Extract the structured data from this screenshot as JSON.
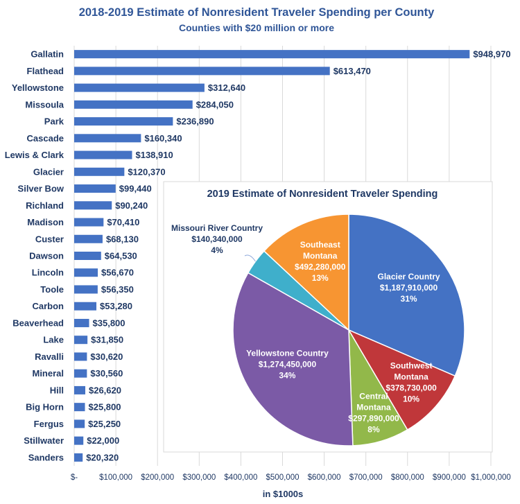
{
  "chart_data": [
    {
      "type": "bar",
      "orientation": "horizontal",
      "title": "2018-2019 Estimate of Nonresident Traveler Spending per County",
      "subtitle": "Counties with $20 million or more",
      "xlabel": "in $1000s",
      "xlim": [
        0,
        1000000
      ],
      "grid": true,
      "bar_color": "#4472C4",
      "x_tick_labels": [
        "$-",
        "$100,000",
        "$200,000",
        "$300,000",
        "$400,000",
        "$500,000",
        "$600,000",
        "$700,000",
        "$800,000",
        "$900,000",
        "$1,000,000"
      ],
      "categories": [
        "Gallatin",
        "Flathead",
        "Yellowstone",
        "Missoula",
        "Park",
        "Cascade",
        "Lewis & Clark",
        "Glacier",
        "Silver Bow",
        "Richland",
        "Madison",
        "Custer",
        "Dawson",
        "Lincoln",
        "Toole",
        "Carbon",
        "Beaverhead",
        "Lake",
        "Ravalli",
        "Mineral",
        "Hill",
        "Big Horn",
        "Fergus",
        "Stillwater",
        "Sanders"
      ],
      "values": [
        948970,
        613470,
        312640,
        284050,
        236890,
        160340,
        138910,
        120370,
        99440,
        90240,
        70410,
        68130,
        64530,
        56670,
        56350,
        53280,
        35800,
        31850,
        30620,
        30560,
        26620,
        25800,
        25250,
        22000,
        20320
      ],
      "value_labels": [
        "$948,970",
        "$613,470",
        "$312,640",
        "$284,050",
        "$236,890",
        "$160,340",
        "$138,910",
        "$120,370",
        "$99,440",
        "$90,240",
        "$70,410",
        "$68,130",
        "$64,530",
        "$56,670",
        "$56,350",
        "$53,280",
        "$35,800",
        "$31,850",
        "$30,620",
        "$30,560",
        "$26,620",
        "$25,800",
        "$25,250",
        "$22,000",
        "$20,320"
      ]
    },
    {
      "type": "pie",
      "title": "2019 Estimate of Nonresident Traveler Spending",
      "slices": [
        {
          "name": "Glacier Country",
          "value": 1187910000,
          "value_label": "$1,187,910,000",
          "percent": "31%",
          "color": "#4472C4"
        },
        {
          "name": "Southwest Montana",
          "value": 378730000,
          "value_label": "$378,730,000",
          "percent": "10%",
          "color": "#C0373A"
        },
        {
          "name": "Central Montana",
          "value": 297890000,
          "value_label": "$297,890,000",
          "percent": "8%",
          "color": "#92B84A"
        },
        {
          "name": "Yellowstone Country",
          "value": 1274450000,
          "value_label": "$1,274,450,000",
          "percent": "34%",
          "color": "#7B5AA6"
        },
        {
          "name": "Missouri River Country",
          "value": 140340000,
          "value_label": "$140,340,000",
          "percent": "4%",
          "color": "#3FAFCB"
        },
        {
          "name": "Southeast Montana",
          "value": 492280000,
          "value_label": "$492,280,000",
          "percent": "13%",
          "color": "#F79532"
        }
      ]
    }
  ]
}
